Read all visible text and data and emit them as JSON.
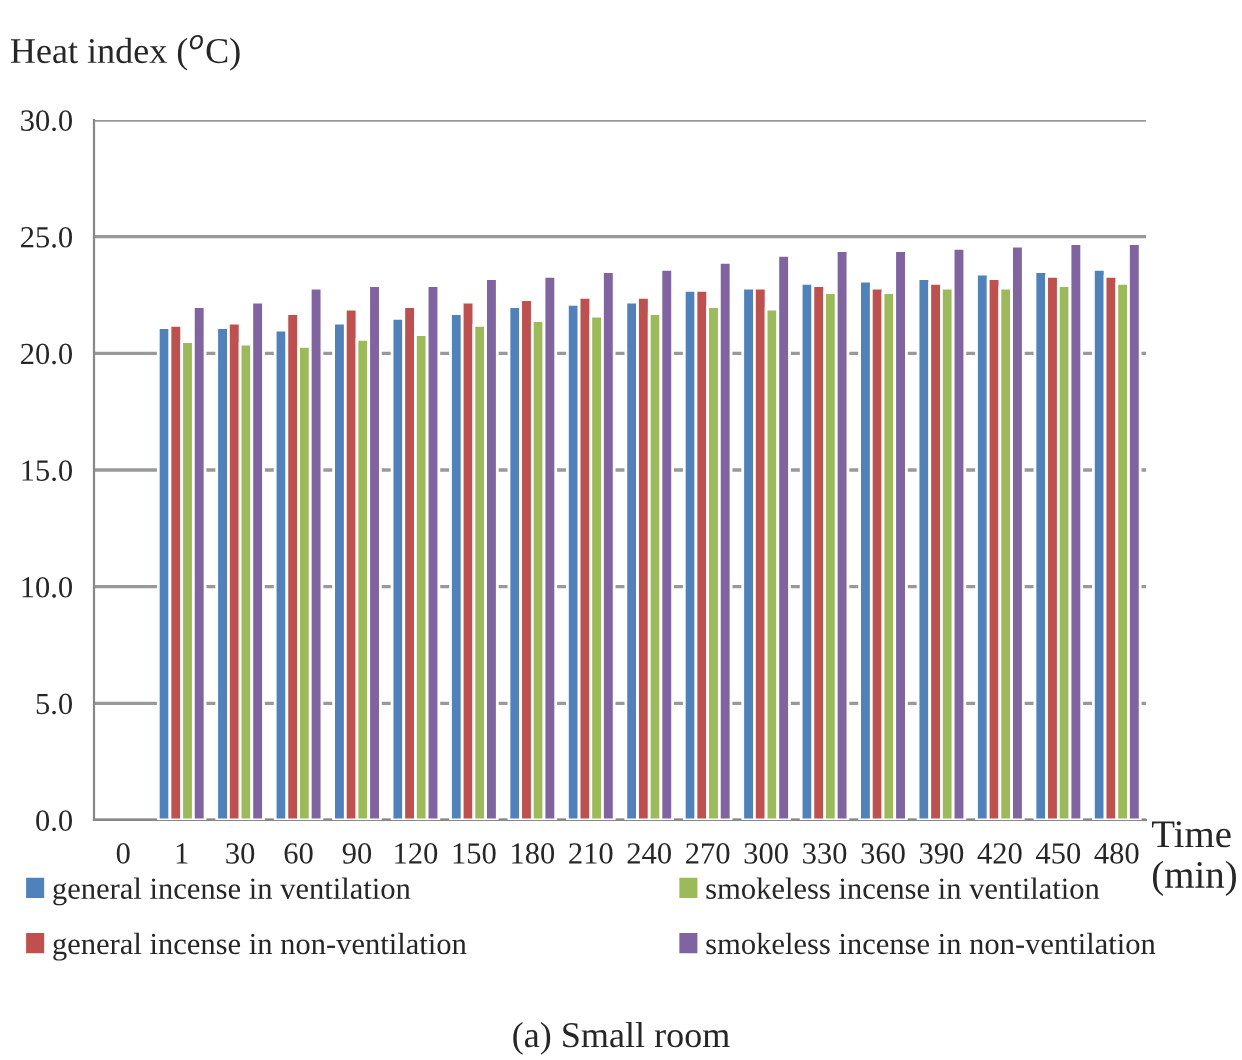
{
  "chart_data": {
    "type": "bar",
    "ylabel": "Heat index ($^{o}$C)",
    "xlabel": "Time\n(min)",
    "categories": [
      "0",
      "1",
      "30",
      "60",
      "90",
      "120",
      "150",
      "180",
      "210",
      "240",
      "270",
      "300",
      "330",
      "360",
      "390",
      "420",
      "450",
      "480"
    ],
    "series": [
      {
        "name": "general incense in ventilation",
        "color": "#4f81bd",
        "values": [
          null,
          21.1,
          21.1,
          21.0,
          21.3,
          21.5,
          21.7,
          22.0,
          22.1,
          22.2,
          22.7,
          22.8,
          23.0,
          23.1,
          23.2,
          23.4,
          23.5,
          23.6
        ]
      },
      {
        "name": "general incense in non-ventilation",
        "color": "#c0504d",
        "values": [
          null,
          21.2,
          21.3,
          21.7,
          21.9,
          22.0,
          22.2,
          22.3,
          22.4,
          22.4,
          22.7,
          22.8,
          22.9,
          22.8,
          23.0,
          23.2,
          23.3,
          23.3
        ]
      },
      {
        "name": "smokeless incense in ventilation",
        "color": "#9bbb59",
        "values": [
          null,
          20.5,
          20.4,
          20.3,
          20.6,
          20.8,
          21.2,
          21.4,
          21.6,
          21.7,
          22.0,
          21.9,
          22.6,
          22.6,
          22.8,
          22.8,
          22.9,
          23.0
        ]
      },
      {
        "name": "smokeless incense in non-ventilation",
        "color": "#8064a2",
        "values": [
          null,
          22.0,
          22.2,
          22.8,
          22.9,
          22.9,
          23.2,
          23.3,
          23.5,
          23.6,
          23.9,
          24.2,
          24.4,
          24.4,
          24.5,
          24.6,
          24.7,
          24.7
        ]
      }
    ],
    "ylim": [
      0,
      30
    ],
    "yticks": [
      {
        "value": 0,
        "label": "0.0"
      },
      {
        "value": 5,
        "label": "5.0"
      },
      {
        "value": 10,
        "label": "10.0"
      },
      {
        "value": 15,
        "label": "15.0"
      },
      {
        "value": 20,
        "label": "20.0"
      },
      {
        "value": 25,
        "label": "25.0"
      },
      {
        "value": 30,
        "label": "30.0"
      }
    ],
    "grid": "y",
    "legend": "bottom",
    "annotations": [
      "(a) Small room"
    ]
  }
}
